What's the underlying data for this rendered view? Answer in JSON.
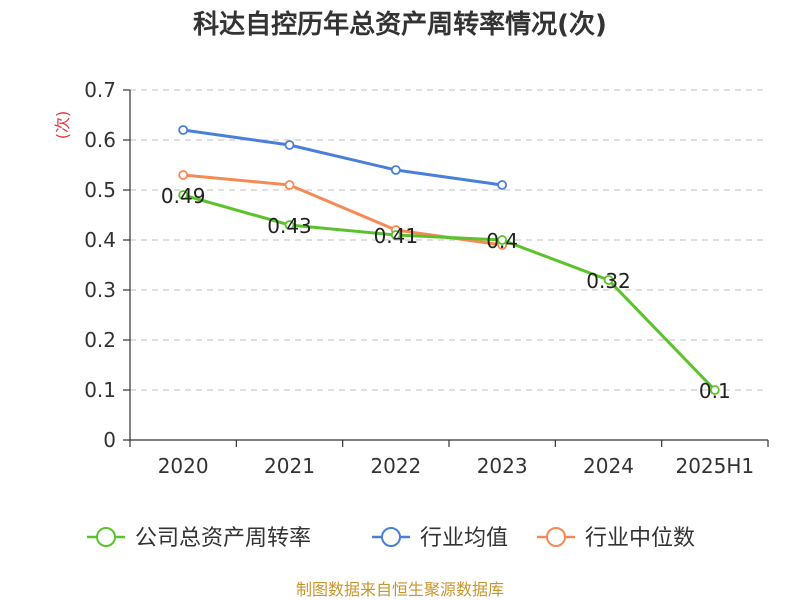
{
  "chart_data": {
    "type": "line",
    "title": "科达自控历年总资产周转率情况(次)",
    "ylabel": "(次)",
    "categories": [
      "2020",
      "2021",
      "2022",
      "2023",
      "2024",
      "2025H1"
    ],
    "ylim": [
      0,
      0.7
    ],
    "yticks": [
      "0",
      "0.1",
      "0.2",
      "0.3",
      "0.4",
      "0.5",
      "0.6",
      "0.7"
    ],
    "grid": true,
    "legend_position": "bottom",
    "series": [
      {
        "name": "公司总资产周转率",
        "color": "#5cc22c",
        "values": [
          0.49,
          0.43,
          0.41,
          0.4,
          0.32,
          0.1
        ],
        "labels": [
          "0.49",
          "0.43",
          "0.41",
          "0.4",
          "0.32",
          "0.1"
        ]
      },
      {
        "name": "行业均值",
        "color": "#4a7fd9",
        "values": [
          0.62,
          0.59,
          0.54,
          0.51,
          null,
          null
        ]
      },
      {
        "name": "行业中位数",
        "color": "#f58a55",
        "values": [
          0.53,
          0.51,
          0.42,
          0.39,
          null,
          null
        ]
      }
    ]
  },
  "source": "制图数据来自恒生聚源数据库"
}
